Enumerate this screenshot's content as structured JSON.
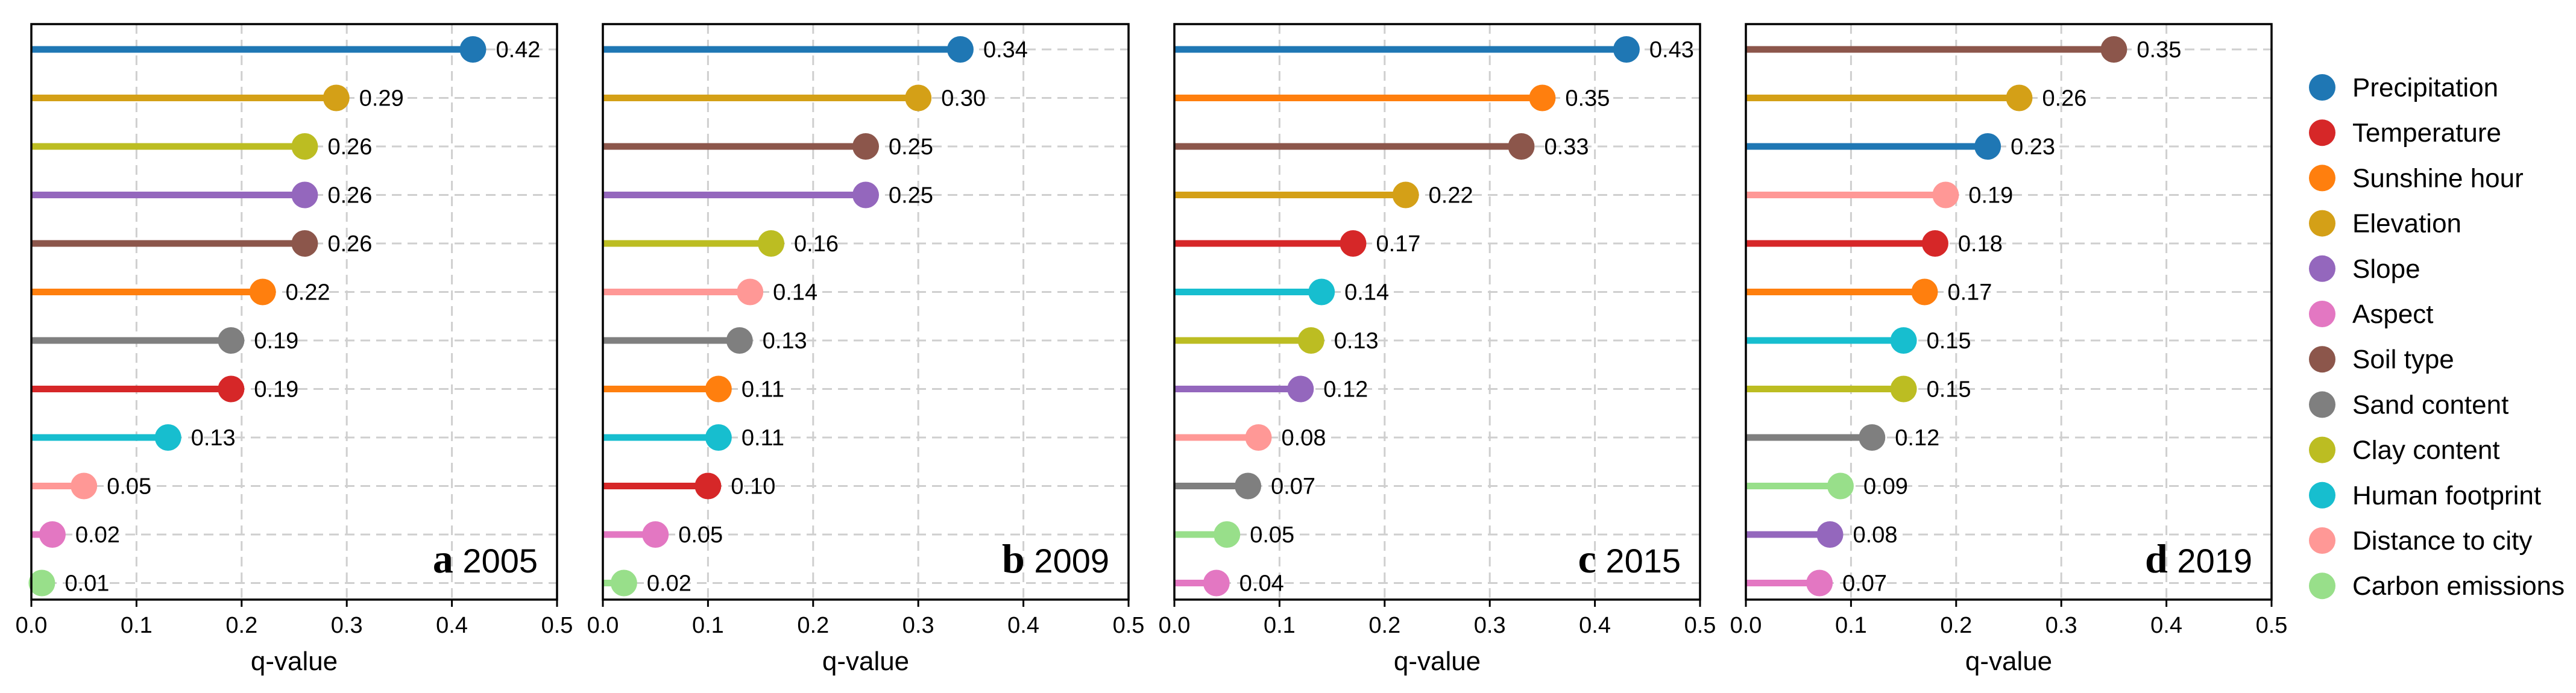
{
  "figure": {
    "legend": [
      {
        "name": "Precipitation",
        "color": "#1f77b4"
      },
      {
        "name": "Temperature",
        "color": "#d62728"
      },
      {
        "name": "Sunshine hour",
        "color": "#ff7f0e"
      },
      {
        "name": "Elevation",
        "color": "#d4a017"
      },
      {
        "name": "Slope",
        "color": "#9467bd"
      },
      {
        "name": "Aspect",
        "color": "#e377c2"
      },
      {
        "name": "Soil type",
        "color": "#8c564b"
      },
      {
        "name": "Sand content",
        "color": "#7f7f7f"
      },
      {
        "name": "Clay content",
        "color": "#bcbd22"
      },
      {
        "name": "Human footprint",
        "color": "#17becf"
      },
      {
        "name": "Distance to city",
        "color": "#ff9896"
      },
      {
        "name": "Carbon emissions",
        "color": "#98df8a"
      }
    ]
  },
  "chart_data": [
    {
      "type": "lollipop",
      "panel_letter": "a",
      "title": "2005",
      "xlabel": "q-value",
      "xlim": [
        0,
        0.5
      ],
      "xticks": [
        "0.0",
        "0.1",
        "0.2",
        "0.3",
        "0.4",
        "0.5"
      ],
      "bars": [
        {
          "factor": "Precipitation",
          "value": 0.42,
          "label": "0.42"
        },
        {
          "factor": "Elevation",
          "value": 0.29,
          "label": "0.29"
        },
        {
          "factor": "Clay content",
          "value": 0.26,
          "label": "0.26"
        },
        {
          "factor": "Slope",
          "value": 0.26,
          "label": "0.26"
        },
        {
          "factor": "Soil type",
          "value": 0.26,
          "label": "0.26"
        },
        {
          "factor": "Sunshine hour",
          "value": 0.22,
          "label": "0.22"
        },
        {
          "factor": "Sand content",
          "value": 0.19,
          "label": "0.19"
        },
        {
          "factor": "Temperature",
          "value": 0.19,
          "label": "0.19"
        },
        {
          "factor": "Human footprint",
          "value": 0.13,
          "label": "0.13"
        },
        {
          "factor": "Distance to city",
          "value": 0.05,
          "label": "0.05"
        },
        {
          "factor": "Aspect",
          "value": 0.02,
          "label": "0.02"
        },
        {
          "factor": "Carbon emissions",
          "value": 0.01,
          "label": "0.01"
        }
      ]
    },
    {
      "type": "lollipop",
      "panel_letter": "b",
      "title": "2009",
      "xlabel": "q-value",
      "xlim": [
        0,
        0.5
      ],
      "xticks": [
        "0.0",
        "0.1",
        "0.2",
        "0.3",
        "0.4",
        "0.5"
      ],
      "bars": [
        {
          "factor": "Precipitation",
          "value": 0.34,
          "label": "0.34"
        },
        {
          "factor": "Elevation",
          "value": 0.3,
          "label": "0.30"
        },
        {
          "factor": "Soil type",
          "value": 0.25,
          "label": "0.25"
        },
        {
          "factor": "Slope",
          "value": 0.25,
          "label": "0.25"
        },
        {
          "factor": "Clay content",
          "value": 0.16,
          "label": "0.16"
        },
        {
          "factor": "Distance to city",
          "value": 0.14,
          "label": "0.14"
        },
        {
          "factor": "Sand content",
          "value": 0.13,
          "label": "0.13"
        },
        {
          "factor": "Sunshine hour",
          "value": 0.11,
          "label": "0.11"
        },
        {
          "factor": "Human footprint",
          "value": 0.11,
          "label": "0.11"
        },
        {
          "factor": "Temperature",
          "value": 0.1,
          "label": "0.10"
        },
        {
          "factor": "Aspect",
          "value": 0.05,
          "label": "0.05"
        },
        {
          "factor": "Carbon emissions",
          "value": 0.02,
          "label": "0.02"
        }
      ]
    },
    {
      "type": "lollipop",
      "panel_letter": "c",
      "title": "2015",
      "xlabel": "q-value",
      "xlim": [
        0,
        0.5
      ],
      "xticks": [
        "0.0",
        "0.1",
        "0.2",
        "0.3",
        "0.4",
        "0.5"
      ],
      "bars": [
        {
          "factor": "Precipitation",
          "value": 0.43,
          "label": "0.43"
        },
        {
          "factor": "Sunshine hour",
          "value": 0.35,
          "label": "0.35"
        },
        {
          "factor": "Soil type",
          "value": 0.33,
          "label": "0.33"
        },
        {
          "factor": "Elevation",
          "value": 0.22,
          "label": "0.22"
        },
        {
          "factor": "Temperature",
          "value": 0.17,
          "label": "0.17"
        },
        {
          "factor": "Human footprint",
          "value": 0.14,
          "label": "0.14"
        },
        {
          "factor": "Clay content",
          "value": 0.13,
          "label": "0.13"
        },
        {
          "factor": "Slope",
          "value": 0.12,
          "label": "0.12"
        },
        {
          "factor": "Distance to city",
          "value": 0.08,
          "label": "0.08"
        },
        {
          "factor": "Sand content",
          "value": 0.07,
          "label": "0.07"
        },
        {
          "factor": "Carbon emissions",
          "value": 0.05,
          "label": "0.05"
        },
        {
          "factor": "Aspect",
          "value": 0.04,
          "label": "0.04"
        }
      ]
    },
    {
      "type": "lollipop",
      "panel_letter": "d",
      "title": "2019",
      "xlabel": "q-value",
      "xlim": [
        0,
        0.5
      ],
      "xticks": [
        "0.0",
        "0.1",
        "0.2",
        "0.3",
        "0.4",
        "0.5"
      ],
      "bars": [
        {
          "factor": "Soil type",
          "value": 0.35,
          "label": "0.35"
        },
        {
          "factor": "Elevation",
          "value": 0.26,
          "label": "0.26"
        },
        {
          "factor": "Precipitation",
          "value": 0.23,
          "label": "0.23"
        },
        {
          "factor": "Distance to city",
          "value": 0.19,
          "label": "0.19"
        },
        {
          "factor": "Temperature",
          "value": 0.18,
          "label": "0.18"
        },
        {
          "factor": "Sunshine hour",
          "value": 0.17,
          "label": "0.17"
        },
        {
          "factor": "Human footprint",
          "value": 0.15,
          "label": "0.15"
        },
        {
          "factor": "Clay content",
          "value": 0.15,
          "label": "0.15"
        },
        {
          "factor": "Sand content",
          "value": 0.12,
          "label": "0.12"
        },
        {
          "factor": "Carbon emissions",
          "value": 0.09,
          "label": "0.09"
        },
        {
          "factor": "Slope",
          "value": 0.08,
          "label": "0.08"
        },
        {
          "factor": "Aspect",
          "value": 0.07,
          "label": "0.07"
        }
      ]
    }
  ]
}
